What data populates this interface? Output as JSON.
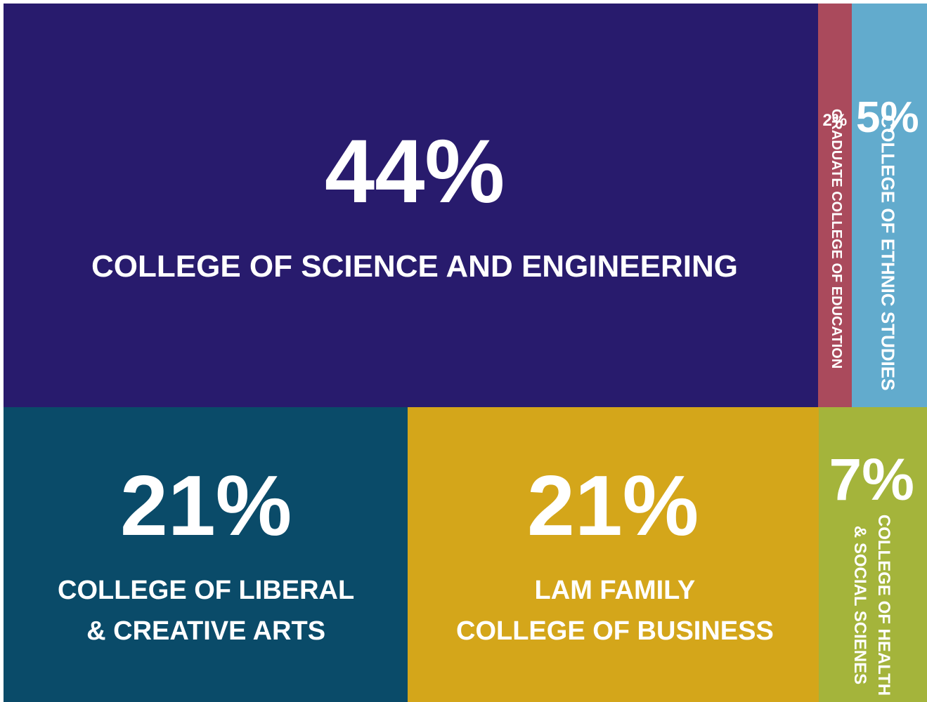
{
  "chart_data": {
    "type": "treemap",
    "series": [
      {
        "key": "cse",
        "value": 44,
        "percent_label": "44%",
        "label_lines": [
          "COLLEGE OF SCIENCE AND ENGINEERING"
        ],
        "color": "#281b6d"
      },
      {
        "key": "lca",
        "value": 21,
        "percent_label": "21%",
        "label_lines": [
          "COLLEGE OF LIBERAL",
          "& CREATIVE ARTS"
        ],
        "color": "#0a4b69"
      },
      {
        "key": "lfcb",
        "value": 21,
        "percent_label": "21%",
        "label_lines": [
          "LAM FAMILY",
          "COLLEGE OF BUSINESS"
        ],
        "color": "#d4a61a"
      },
      {
        "key": "hss",
        "value": 7,
        "percent_label": "7%",
        "label_lines": [
          "COLLEGE OF HEALTH",
          "& SOCIAL SCIENES"
        ],
        "color": "#a4b43b"
      },
      {
        "key": "es",
        "value": 5,
        "percent_label": "5%",
        "label_lines": [
          "COLLEGE OF ETHNIC STUDIES"
        ],
        "color": "#62abcd"
      },
      {
        "key": "gce",
        "value": 2,
        "percent_label": "2%",
        "label_lines": [
          "GRADUATE COLLEGE OF EDUCATION"
        ],
        "color": "#aa4a5c"
      }
    ]
  }
}
